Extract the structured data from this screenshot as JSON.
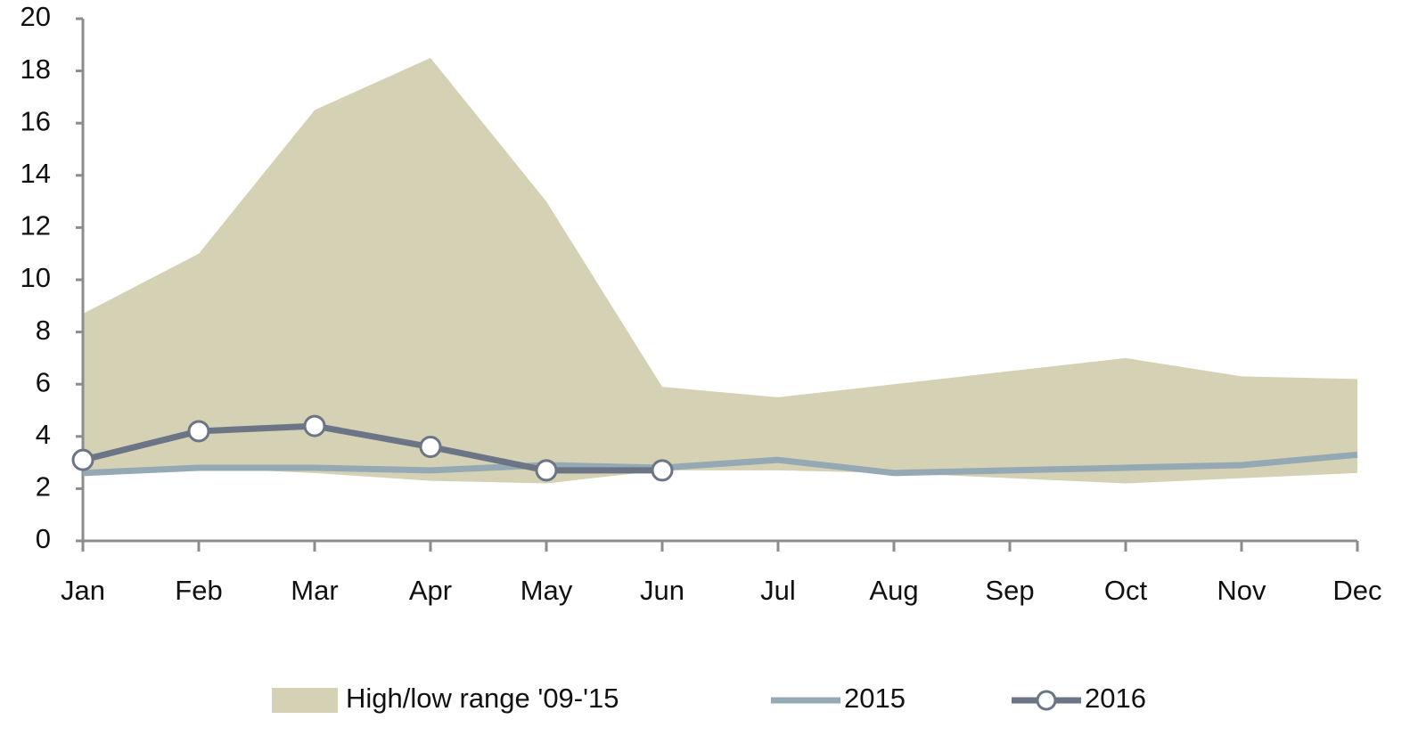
{
  "chart_data": {
    "type": "line",
    "categories": [
      "Jan",
      "Feb",
      "Mar",
      "Apr",
      "May",
      "Jun",
      "Jul",
      "Aug",
      "Sep",
      "Oct",
      "Nov",
      "Dec"
    ],
    "ylim": [
      0,
      20
    ],
    "yticks": [
      0,
      2,
      4,
      6,
      8,
      10,
      12,
      14,
      16,
      18,
      20
    ],
    "grid": false,
    "legend": "bottom",
    "series": [
      {
        "name": "High/low range '09-'15",
        "color": "#d4d1b4",
        "high": [
          8.7,
          11,
          16.5,
          18.5,
          13,
          5.9,
          5.5,
          6,
          6.5,
          7,
          6.3,
          6.2
        ],
        "low": [
          2.7,
          2.8,
          2.6,
          2.3,
          2.2,
          2.7,
          2.7,
          2.6,
          2.4,
          2.2,
          2.4,
          2.6
        ]
      },
      {
        "name": "2015",
        "color": "#94a9b4",
        "values": [
          2.6,
          2.8,
          2.8,
          2.7,
          2.9,
          2.8,
          3.1,
          2.6,
          2.7,
          2.8,
          2.9,
          3.3
        ]
      },
      {
        "name": "2016",
        "color": "#6b7585",
        "marker": true,
        "values": [
          3.1,
          4.2,
          4.4,
          3.6,
          2.7,
          2.7,
          null,
          null,
          null,
          null,
          null,
          null
        ]
      }
    ]
  }
}
